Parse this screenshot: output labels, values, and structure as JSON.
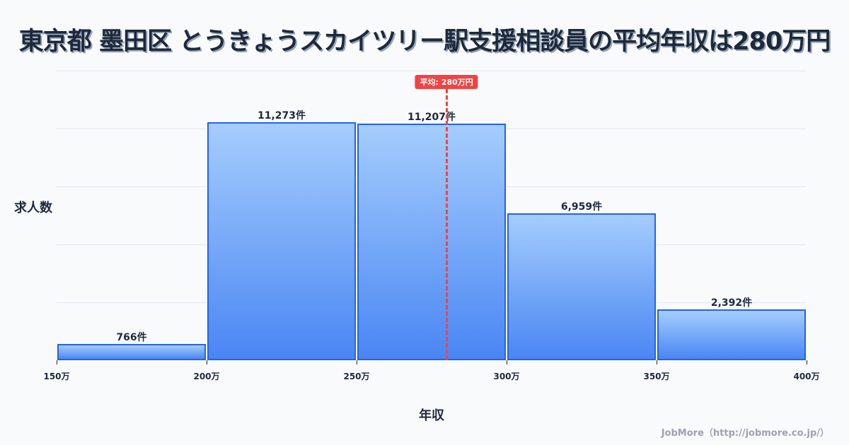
{
  "title": "東京都 墨田区 とうきょうスカイツリー駅支援相談員の平均年収は280万円",
  "credit": "JobMore（http://jobmore.co.jp/）",
  "colors": {
    "bar_fill_top": "#a5cdfc",
    "bar_fill_bottom": "#4a86f4",
    "bar_border": "#2563eb",
    "mean_line": "#ef4444",
    "text": "#1e293b",
    "background": "#f8fafc"
  },
  "chart_data": {
    "type": "bar",
    "title": "東京都 墨田区 とうきょうスカイツリー駅支援相談員の平均年収は280万円",
    "xlabel": "年収",
    "ylabel": "求人数",
    "bin_edges": [
      150,
      200,
      250,
      300,
      350,
      400
    ],
    "categories": [
      "150-200万",
      "200-250万",
      "250-300万",
      "300-350万",
      "350-400万"
    ],
    "values": [
      766,
      11273,
      11207,
      6959,
      2392
    ],
    "value_labels": [
      "766件",
      "11,273件",
      "11,207件",
      "6,959件",
      "2,392件"
    ],
    "x_tick_labels": [
      "150万",
      "200万",
      "250万",
      "300万",
      "350万",
      "400万"
    ],
    "xlim": [
      150,
      400
    ],
    "ylim": [
      0,
      13700
    ],
    "grid": true,
    "annotations": [
      {
        "type": "vline",
        "x": 280,
        "label": "平均: 280万円",
        "style": "dashed",
        "color": "#ef4444"
      }
    ]
  }
}
